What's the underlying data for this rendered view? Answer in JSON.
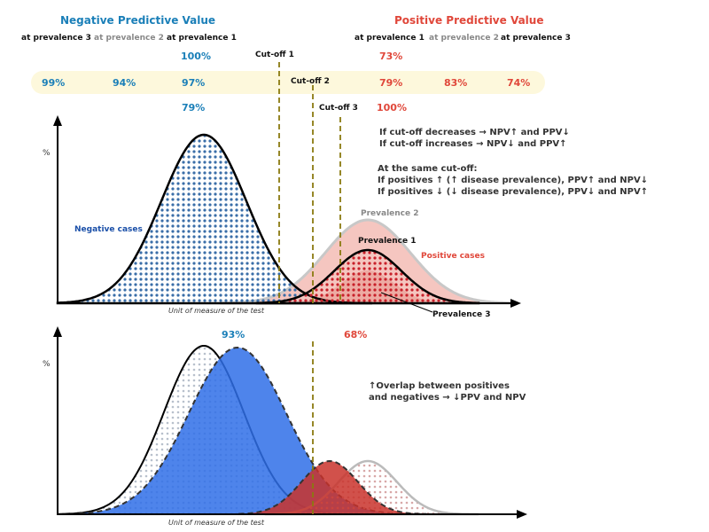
{
  "npv": {
    "title": "Negative Predictive Value",
    "prev3": "at prevalence 3",
    "prev2": "at prevalence 2",
    "prev1": "at prevalence 1",
    "cutoff1_p1": "100%",
    "cutoff2_p3": "99%",
    "cutoff2_p2": "94%",
    "cutoff2_p1": "97%",
    "cutoff3_p1": "79%"
  },
  "ppv": {
    "title": "Positive Predictive Value",
    "prev1": "at prevalence 1",
    "prev2": "at prevalence 2",
    "prev3": "at prevalence 3",
    "cutoff1_p1": "73%",
    "cutoff2_p1": "79%",
    "cutoff2_p2": "83%",
    "cutoff2_p3": "74%",
    "cutoff3_p1": "100%"
  },
  "cutoffs": [
    "Cut-off 1",
    "Cut-off 2",
    "Cut-off 3"
  ],
  "notes": {
    "l1": "If cut-off decreases → NPV↑ and PPV↓",
    "l2": "If cut-off increases → NPV↓ and PPV↑",
    "l3": "At the same cut-off:",
    "l4": "If positives ↑ (↑ disease prevalence), PPV↑ and NPV↓",
    "l5": "If positives ↓ (↓ disease prevalence), PPV↓ and NPV↑"
  },
  "top": {
    "ylabel": "%",
    "xlabel": "Unit of measure of the test",
    "negative": "Negative cases",
    "positive": "Positive cases",
    "prev1": "Prevalence 1",
    "prev2": "Prevalence 2",
    "prev3": "Prevalence 3"
  },
  "bottom": {
    "ylabel": "%",
    "xlabel": "Unit of measure of the test",
    "npv": "93%",
    "ppv": "68%",
    "note1": "↑Overlap between positives",
    "note2": "and negatives → ↓PPV and NPV"
  },
  "colors": {
    "npv": "#1a7fb8",
    "ppv": "#e0473a",
    "band": "#fdf8dc",
    "cutoff": "#8a7a10",
    "blue_fill": "#2f6fe8",
    "red_fill": "#c9332b"
  }
}
